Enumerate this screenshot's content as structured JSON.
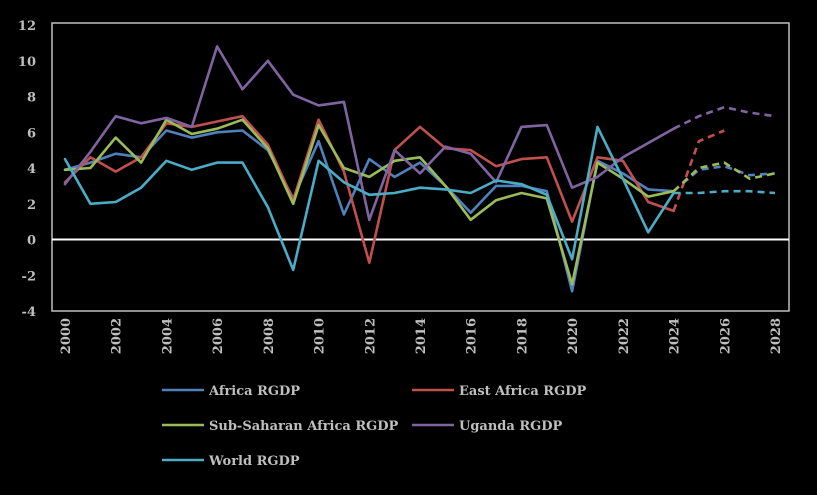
{
  "chart_data": {
    "type": "line",
    "title": "",
    "xlabel": "",
    "ylabel": "",
    "ylim": [
      -4,
      12
    ],
    "yticks": [
      -4,
      -2,
      0,
      2,
      4,
      6,
      8,
      10,
      12
    ],
    "xlim": [
      2000,
      2028
    ],
    "xticks": [
      2000,
      2002,
      2004,
      2006,
      2008,
      2010,
      2012,
      2014,
      2016,
      2018,
      2020,
      2022,
      2024,
      2026,
      2028
    ],
    "xtick_labels": [
      "2000",
      "2002",
      "2004",
      "2006",
      "2008",
      "2010",
      "2012",
      "2014",
      "2016",
      "2018",
      "2020",
      "2022",
      "2024",
      "2026",
      "2028"
    ],
    "ytick_labels": [
      "-4",
      "-2",
      "0",
      "2",
      "4",
      "6",
      "8",
      "10",
      "12"
    ],
    "legend_position": "bottom",
    "series": [
      {
        "name": "Africa RGDP",
        "color": "#4f81bd",
        "solid": {
          "x": [
            2000,
            2001,
            2002,
            2003,
            2004,
            2005,
            2006,
            2007,
            2008,
            2009,
            2010,
            2011,
            2012,
            2013,
            2014,
            2015,
            2016,
            2017,
            2018,
            2019,
            2020,
            2021,
            2022,
            2023,
            2024
          ],
          "y": [
            3.9,
            4.3,
            4.8,
            4.6,
            6.1,
            5.7,
            6.0,
            6.1,
            5.0,
            2.3,
            5.5,
            1.4,
            4.5,
            3.5,
            4.3,
            3.0,
            1.5,
            3.0,
            3.0,
            2.7,
            -2.9,
            4.4,
            3.7,
            2.8,
            2.7
          ]
        },
        "dashed": {
          "x": [
            2024,
            2025,
            2026,
            2027,
            2028
          ],
          "y": [
            2.7,
            3.9,
            4.1,
            3.6,
            3.7
          ]
        }
      },
      {
        "name": "East Africa RGDP",
        "color": "#c0504d",
        "solid": {
          "x": [
            2000,
            2001,
            2002,
            2003,
            2004,
            2005,
            2006,
            2007,
            2008,
            2009,
            2010,
            2011,
            2012,
            2013,
            2014,
            2015,
            2016,
            2017,
            2018,
            2019,
            2020,
            2021,
            2022,
            2023,
            2024
          ],
          "y": [
            3.2,
            4.6,
            3.8,
            4.6,
            6.5,
            6.3,
            6.6,
            6.9,
            5.3,
            2.2,
            6.7,
            3.8,
            -1.3,
            5.0,
            6.3,
            5.1,
            5.0,
            4.1,
            4.5,
            4.6,
            1.0,
            4.6,
            4.4,
            2.1,
            1.6
          ]
        },
        "dashed": {
          "x": [
            2024,
            2025,
            2026
          ],
          "y": [
            1.6,
            5.5,
            6.1
          ]
        }
      },
      {
        "name": "Sub-Saharan Africa RGDP",
        "color": "#9bbb59",
        "solid": {
          "x": [
            2000,
            2001,
            2002,
            2003,
            2004,
            2005,
            2006,
            2007,
            2008,
            2009,
            2010,
            2011,
            2012,
            2013,
            2014,
            2015,
            2016,
            2017,
            2018,
            2019,
            2020,
            2021,
            2022,
            2023,
            2024
          ],
          "y": [
            3.9,
            4.0,
            5.7,
            4.3,
            6.7,
            5.9,
            6.2,
            6.7,
            5.1,
            2.0,
            6.4,
            4.0,
            3.5,
            4.4,
            4.6,
            3.0,
            1.1,
            2.2,
            2.6,
            2.3,
            -2.5,
            4.3,
            3.4,
            2.4,
            2.7
          ]
        },
        "dashed": {
          "x": [
            2024,
            2025,
            2026,
            2027,
            2028
          ],
          "y": [
            2.7,
            4.0,
            4.3,
            3.4,
            3.7
          ]
        }
      },
      {
        "name": "Uganda RGDP",
        "color": "#8064a2",
        "solid": {
          "x": [
            2000,
            2001,
            2002,
            2003,
            2004,
            2005,
            2006,
            2007,
            2008,
            2009,
            2010,
            2011,
            2012,
            2013,
            2014,
            2015,
            2016,
            2017,
            2018,
            2019,
            2020,
            2021,
            2022,
            2023,
            2024
          ],
          "y": [
            3.1,
            4.9,
            6.9,
            6.5,
            6.8,
            6.3,
            10.8,
            8.4,
            10.0,
            8.1,
            7.5,
            7.7,
            1.1,
            5.0,
            3.7,
            5.2,
            4.8,
            3.2,
            6.3,
            6.4,
            2.9,
            3.5,
            4.6,
            5.4,
            6.2
          ]
        },
        "dashed": {
          "x": [
            2024,
            2025,
            2026,
            2027,
            2028
          ],
          "y": [
            6.2,
            6.9,
            7.4,
            7.1,
            6.9
          ]
        }
      },
      {
        "name": "World RGDP",
        "color": "#4bacc6",
        "solid": {
          "x": [
            2000,
            2001,
            2002,
            2003,
            2004,
            2005,
            2006,
            2007,
            2008,
            2009,
            2010,
            2011,
            2012,
            2013,
            2014,
            2015,
            2016,
            2017,
            2018,
            2019,
            2020,
            2021,
            2022,
            2023,
            2024
          ],
          "y": [
            4.5,
            2.0,
            2.1,
            2.9,
            4.4,
            3.9,
            4.3,
            4.3,
            1.8,
            -1.7,
            4.4,
            3.2,
            2.5,
            2.6,
            2.9,
            2.8,
            2.6,
            3.3,
            3.1,
            2.5,
            -1.1,
            6.3,
            3.4,
            0.4,
            2.6
          ]
        },
        "dashed": {
          "x": [
            2024,
            2025,
            2026,
            2027,
            2028
          ],
          "y": [
            2.6,
            2.6,
            2.7,
            2.7,
            2.6
          ]
        }
      }
    ]
  }
}
